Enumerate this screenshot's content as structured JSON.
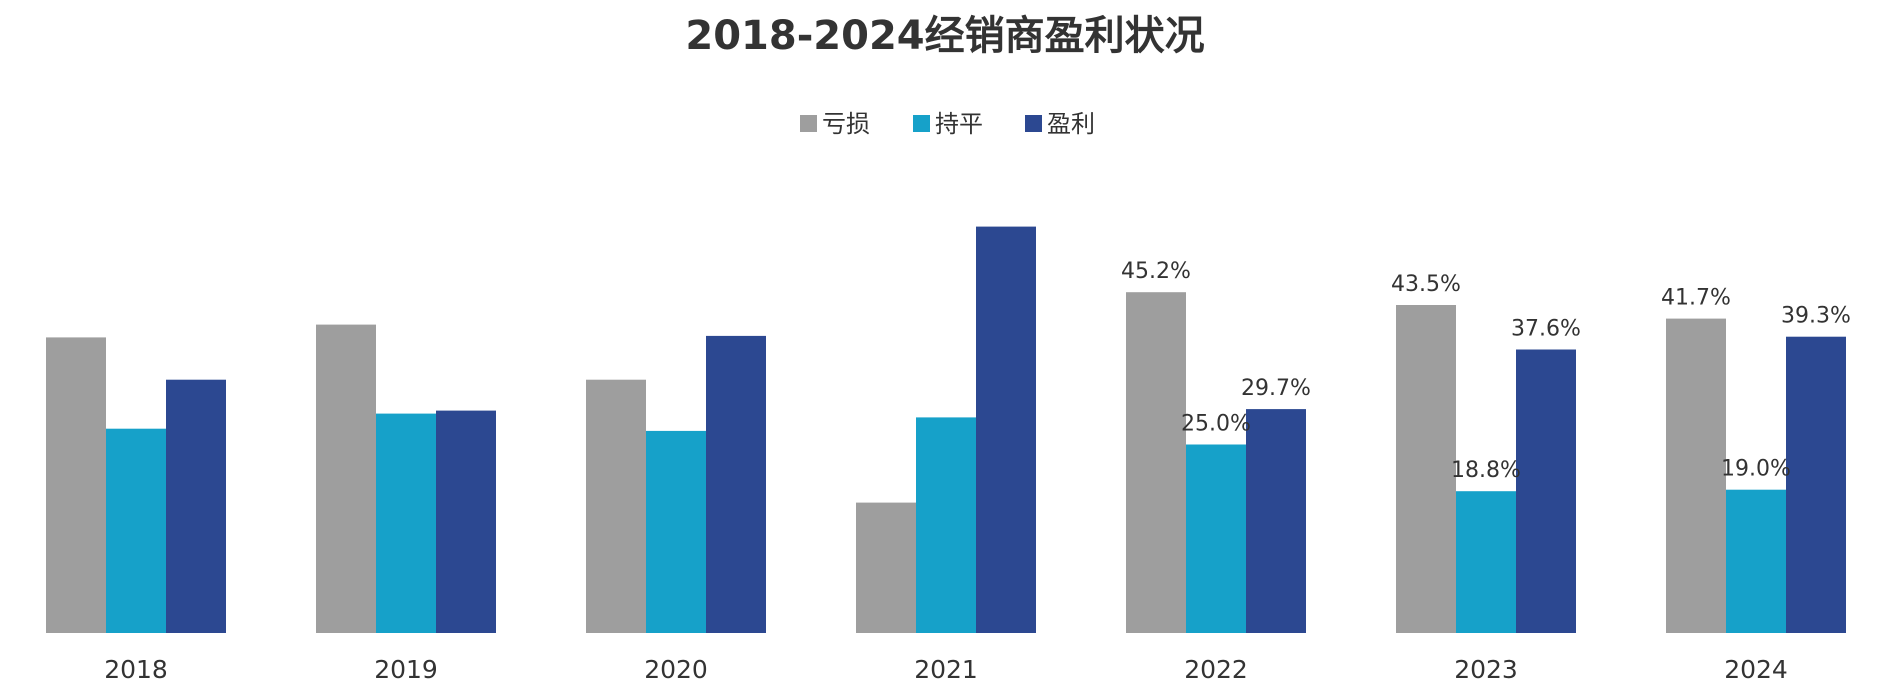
{
  "chart_data": {
    "type": "bar",
    "title": "2018-2024经销商盈利状况",
    "xlabel": "",
    "ylabel": "",
    "ylim": [
      0,
      60
    ],
    "grid": false,
    "legend_position": "top-center",
    "categories": [
      "2018",
      "2019",
      "2020",
      "2021",
      "2022",
      "2023",
      "2024"
    ],
    "series": [
      {
        "name": "亏损",
        "color": "#9e9e9e",
        "values": [
          39.2,
          40.9,
          33.6,
          17.3,
          45.2,
          43.5,
          41.7
        ],
        "labels": [
          "",
          "",
          "",
          "",
          "45.2%",
          "43.5%",
          "41.7%"
        ]
      },
      {
        "name": "持平",
        "color": "#16a1c9",
        "values": [
          27.1,
          29.1,
          26.8,
          28.6,
          25.0,
          18.8,
          19.0
        ],
        "labels": [
          "",
          "",
          "",
          "",
          "25.0%",
          "18.8%",
          "19.0%"
        ]
      },
      {
        "name": "盈利",
        "color": "#2c4891",
        "values": [
          33.6,
          29.5,
          39.4,
          53.9,
          29.7,
          37.6,
          39.3
        ],
        "labels": [
          "",
          "",
          "",
          "",
          "29.7%",
          "37.6%",
          "39.3%"
        ]
      }
    ]
  }
}
